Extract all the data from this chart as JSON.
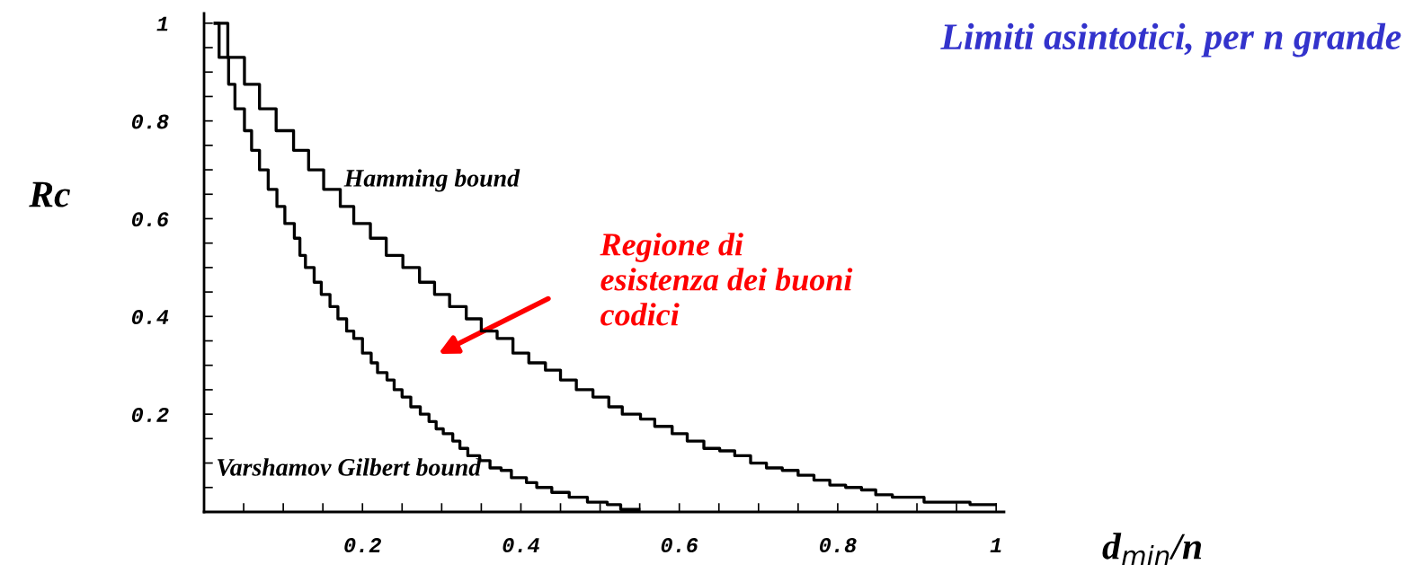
{
  "chart_data": {
    "type": "step",
    "title": "Limiti asintotici, per n grande",
    "xlabel": "d$_{min}$/n",
    "ylabel": "Rc",
    "xlim": [
      0,
      1.01
    ],
    "ylim": [
      0,
      1.02
    ],
    "xticks": [
      {
        "value": 0.05,
        "label": null
      },
      {
        "value": 0.1,
        "label": null
      },
      {
        "value": 0.15,
        "label": null
      },
      0.2,
      {
        "value": 0.25,
        "label": null
      },
      {
        "value": 0.3,
        "label": null
      },
      {
        "value": 0.35,
        "label": null
      },
      0.4,
      {
        "value": 0.45,
        "label": null
      },
      {
        "value": 0.5,
        "label": null
      },
      {
        "value": 0.55,
        "label": null
      },
      0.6,
      {
        "value": 0.65,
        "label": null
      },
      {
        "value": 0.7,
        "label": null
      },
      {
        "value": 0.75,
        "label": null
      },
      0.8,
      {
        "value": 0.85,
        "label": null
      },
      {
        "value": 0.9,
        "label": null
      },
      {
        "value": 0.95,
        "label": null
      },
      1
    ],
    "yticks": [
      {
        "value": 0.05,
        "label": null
      },
      {
        "value": 0.1,
        "label": null
      },
      {
        "value": 0.15,
        "label": null
      },
      0.2,
      {
        "value": 0.25,
        "label": null
      },
      {
        "value": 0.3,
        "label": null
      },
      {
        "value": 0.35,
        "label": null
      },
      0.4,
      {
        "value": 0.45,
        "label": null
      },
      {
        "value": 0.5,
        "label": null
      },
      {
        "value": 0.55,
        "label": null
      },
      0.6,
      {
        "value": 0.65,
        "label": null
      },
      {
        "value": 0.7,
        "label": null
      },
      {
        "value": 0.75,
        "label": null
      },
      0.8,
      {
        "value": 0.85,
        "label": null
      },
      {
        "value": 0.9,
        "label": null
      },
      {
        "value": 0.95,
        "label": null
      },
      1
    ],
    "grid": false,
    "legend": false,
    "marker": "none",
    "line_style": "solid",
    "series": [
      {
        "name": "Hamming bound",
        "color": "#000000",
        "x": [
          0.014,
          0.03,
          0.051,
          0.07,
          0.091,
          0.113,
          0.132,
          0.151,
          0.172,
          0.189,
          0.21,
          0.23,
          0.251,
          0.272,
          0.291,
          0.31,
          0.331,
          0.35,
          0.37,
          0.39,
          0.41,
          0.431,
          0.45,
          0.47,
          0.491,
          0.511,
          0.528,
          0.551,
          0.569,
          0.591,
          0.61,
          0.631,
          0.651,
          0.67,
          0.69,
          0.71,
          0.73,
          0.75,
          0.77,
          0.79,
          0.81,
          0.83,
          0.848,
          0.869,
          0.909,
          0.93,
          0.967,
          0.999
        ],
        "values": [
          1.0,
          0.93,
          0.875,
          0.825,
          0.78,
          0.74,
          0.7,
          0.66,
          0.625,
          0.59,
          0.56,
          0.525,
          0.5,
          0.47,
          0.445,
          0.42,
          0.395,
          0.37,
          0.355,
          0.325,
          0.305,
          0.29,
          0.27,
          0.25,
          0.235,
          0.215,
          0.2,
          0.19,
          0.175,
          0.16,
          0.145,
          0.13,
          0.125,
          0.115,
          0.1,
          0.09,
          0.085,
          0.075,
          0.065,
          0.055,
          0.05,
          0.045,
          0.035,
          0.03,
          0.02,
          0.02,
          0.015,
          0.015
        ]
      },
      {
        "name": "Varshamov Gilbert bound",
        "color": "#000000",
        "x": [
          0.014,
          0.019,
          0.031,
          0.039,
          0.051,
          0.06,
          0.07,
          0.081,
          0.092,
          0.102,
          0.114,
          0.121,
          0.128,
          0.139,
          0.148,
          0.159,
          0.169,
          0.18,
          0.189,
          0.2,
          0.211,
          0.219,
          0.231,
          0.24,
          0.25,
          0.261,
          0.273,
          0.284,
          0.293,
          0.302,
          0.314,
          0.323,
          0.333,
          0.348,
          0.361,
          0.375,
          0.388,
          0.407,
          0.42,
          0.439,
          0.461,
          0.484,
          0.509,
          0.526,
          0.549
        ],
        "values": [
          1.0,
          0.93,
          0.875,
          0.825,
          0.78,
          0.74,
          0.7,
          0.66,
          0.625,
          0.59,
          0.56,
          0.525,
          0.5,
          0.47,
          0.445,
          0.42,
          0.395,
          0.37,
          0.355,
          0.325,
          0.305,
          0.285,
          0.27,
          0.25,
          0.235,
          0.215,
          0.2,
          0.185,
          0.17,
          0.16,
          0.145,
          0.13,
          0.115,
          0.105,
          0.09,
          0.085,
          0.07,
          0.06,
          0.05,
          0.04,
          0.03,
          0.02,
          0.015,
          0.005,
          0.005
        ]
      }
    ],
    "annotations": [
      "Regione di\nesistenza dei buoni\ncodici"
    ]
  }
}
